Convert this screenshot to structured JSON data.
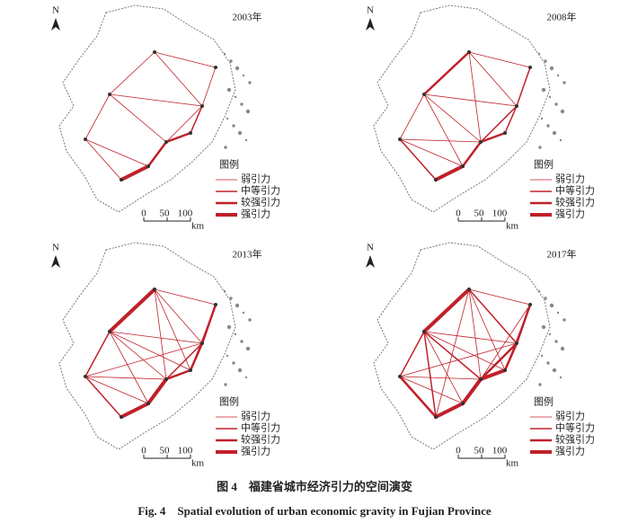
{
  "panels": [
    {
      "north": "N",
      "year": "2003年",
      "legend_title": "图例",
      "legend": [
        "弱引力",
        "中等引力",
        "较强引力",
        "强引力"
      ],
      "scale": [
        "0",
        "50",
        "100"
      ],
      "scale_unit": "km"
    },
    {
      "north": "N",
      "year": "2008年",
      "legend_title": "图例",
      "legend": [
        "弱引力",
        "中等引力",
        "较强引力",
        "强引力"
      ],
      "scale": [
        "0",
        "50",
        "100"
      ],
      "scale_unit": "km"
    },
    {
      "north": "N",
      "year": "2013年",
      "legend_title": "图例",
      "legend": [
        "弱引力",
        "中等引力",
        "较强引力",
        "强引力"
      ],
      "scale": [
        "0",
        "50",
        "100"
      ],
      "scale_unit": "km"
    },
    {
      "north": "N",
      "year": "2017年",
      "legend_title": "图例",
      "legend": [
        "弱引力",
        "中等引力",
        "较强引力",
        "强引力"
      ],
      "scale": [
        "0",
        "50",
        "100"
      ],
      "scale_unit": "km"
    }
  ],
  "caption": {
    "zh": "图 4　福建省城市经济引力的空间演变",
    "en": "Fig. 4　Spatial evolution of urban economic gravity in Fujian Province"
  }
}
